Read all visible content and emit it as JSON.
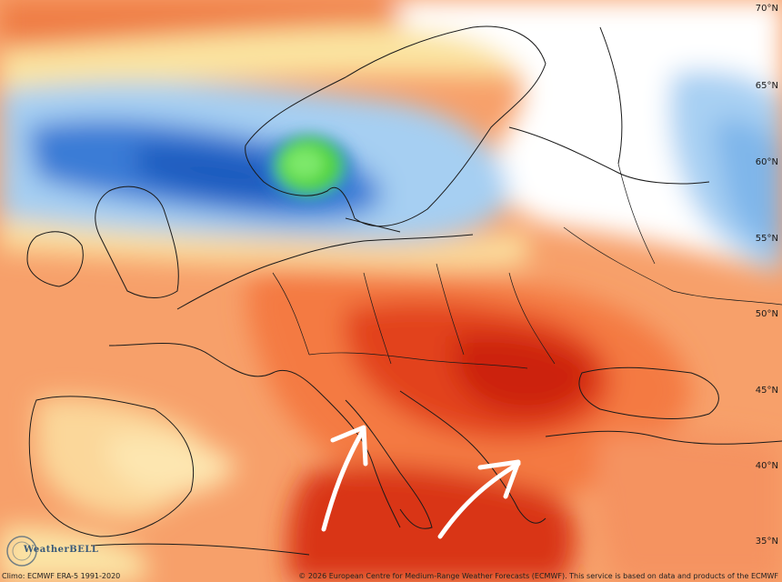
{
  "map": {
    "lat_labels": [
      {
        "key": "70",
        "text": "70°N"
      },
      {
        "key": "65",
        "text": "65°N"
      },
      {
        "key": "60",
        "text": "60°N"
      },
      {
        "key": "55",
        "text": "55°N"
      },
      {
        "key": "50",
        "text": "50°N"
      },
      {
        "key": "45",
        "text": "45°N"
      },
      {
        "key": "40",
        "text": "40°N"
      },
      {
        "key": "35",
        "text": "35°N"
      }
    ],
    "colors": {
      "ocean_warm": "#f6a36e",
      "hot_core": "#e03a14",
      "very_hot": "#c81e0a",
      "warm": "#f79560",
      "cool_blue": "#3d7fd8",
      "deep_blue": "#1f5fc0",
      "light_blue": "#a9d2f2",
      "pale_yellow": "#fbe8a6",
      "anomaly_green": "#4fd23c",
      "coast": "#1a1a1a"
    },
    "annotations": [
      {
        "name": "arrow-italy",
        "icon": "curved-arrow-icon"
      },
      {
        "name": "arrow-greece",
        "icon": "curved-arrow-icon"
      }
    ]
  },
  "footer": {
    "left": "Climo: ECMWF ERA-5 1991-2020",
    "right": "© 2026 European Centre for Medium-Range Weather Forecasts (ECMWF). This service is based on data and products of the ECMWF"
  },
  "logo": {
    "text": "WeatherBELL"
  }
}
